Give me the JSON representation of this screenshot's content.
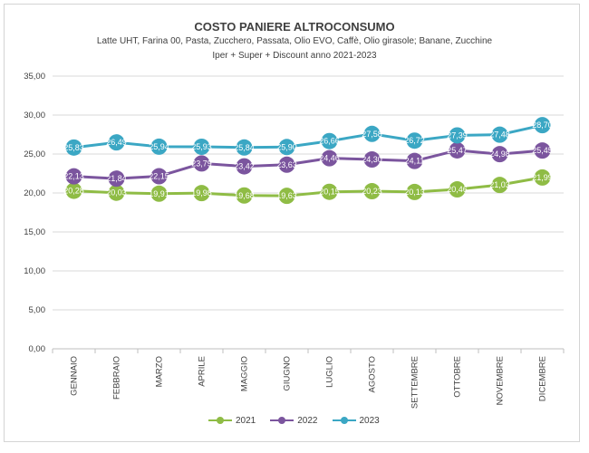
{
  "chart_data": {
    "type": "line",
    "title": "COSTO PANIERE ALTROCONSUMO",
    "subtitle_lines": [
      "Latte UHT, Farina 00, Pasta, Zucchero, Passata, Olio EVO, Caffè, Olio girasole; Banane, Zucchine",
      "Iper + Super + Discount   anno 2021-2023"
    ],
    "categories": [
      "GENNAIO",
      "FEBBRAIO",
      "MARZO",
      "APRILE",
      "MAGGIO",
      "GIUGNO",
      "LUGLIO",
      "AGOSTO",
      "SETTEMBRE",
      "OTTOBRE",
      "NOVEMBRE",
      "DICEMBRE"
    ],
    "ylim": [
      0,
      35
    ],
    "yticks": [
      "0,00",
      "5,00",
      "10,00",
      "15,00",
      "20,00",
      "25,00",
      "30,00",
      "35,00"
    ],
    "grid": true,
    "legend_position": "bottom",
    "series": [
      {
        "name": "2021",
        "color": "#8fbc45",
        "values": [
          20.28,
          20.03,
          19.91,
          19.98,
          19.68,
          19.63,
          20.15,
          20.23,
          20.13,
          20.46,
          21.03,
          21.99
        ],
        "labels": [
          "20,28",
          "20,03",
          "19,91",
          "19,98",
          "19,68",
          "19,63",
          "20,15",
          "20,23",
          "20,13",
          "20,46",
          "21,03",
          "21,99"
        ]
      },
      {
        "name": "2022",
        "color": "#7b559e",
        "values": [
          22.13,
          21.84,
          22.15,
          23.79,
          23.42,
          23.63,
          24.46,
          24.3,
          24.11,
          25.47,
          24.98,
          25.45
        ],
        "labels": [
          "22,13",
          "21,84",
          "22,15",
          "23,79",
          "23,42",
          "23,63",
          "24,46",
          "24,30",
          "24,11",
          "25,47",
          "24,98",
          "25,45"
        ]
      },
      {
        "name": "2023",
        "color": "#3ba7c4",
        "values": [
          25.83,
          26.49,
          25.94,
          25.93,
          25.84,
          25.9,
          26.66,
          27.58,
          26.72,
          27.39,
          27.48,
          28.7
        ],
        "labels": [
          "25,83",
          "26,49",
          "25,94",
          "25,93",
          "25,84",
          "25,90",
          "26,66",
          "27,58",
          "26,72",
          "27,39",
          "27,48",
          "28,70"
        ]
      }
    ]
  }
}
